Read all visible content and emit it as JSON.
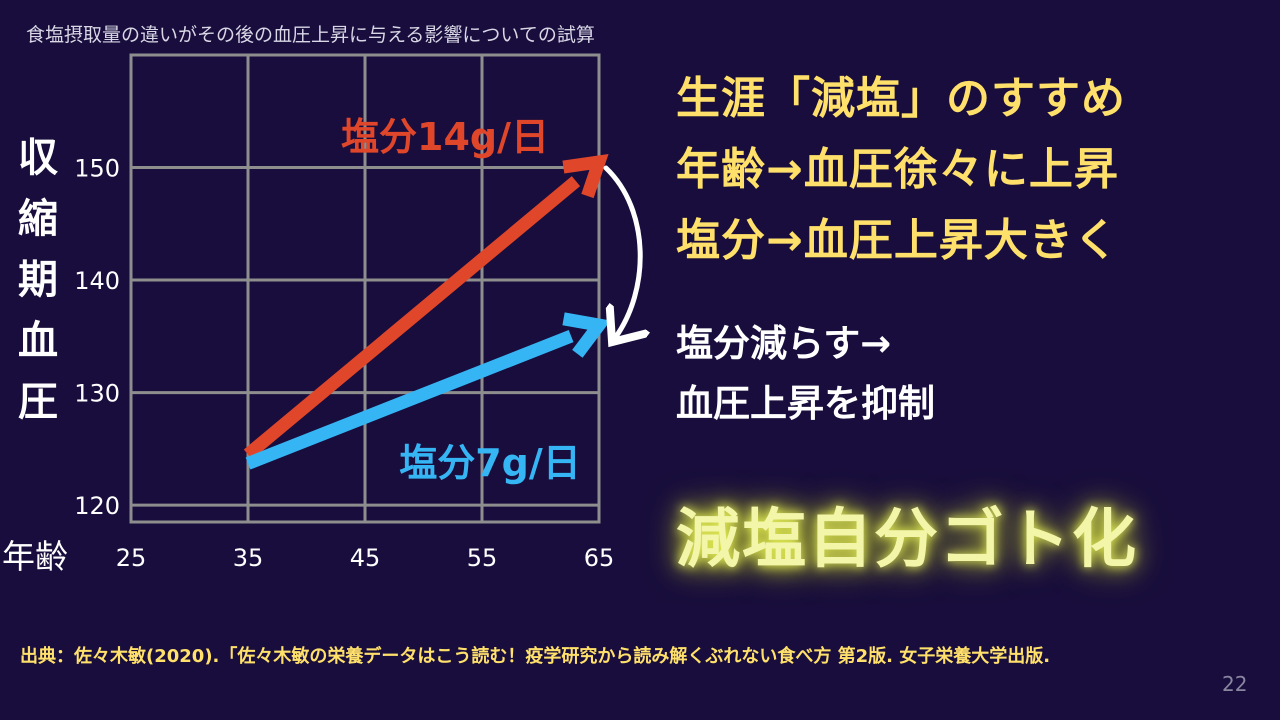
{
  "slide": {
    "heading_lines": [
      "生涯「減塩」のすすめ",
      "年齢→血圧徐々に上昇",
      "塩分→血圧上昇大きく"
    ],
    "note_lines": [
      "塩分減らす→",
      "血圧上昇を抑制"
    ],
    "slogan": "減塩自分ゴト化",
    "source": "出典：佐々木敏(2020).「佐々木敏の栄養データはこう読む！疫学研究から読み解くぶれない食べ方 第2版. 女子栄養大学出版.",
    "page_number": "22",
    "colors": {
      "heading": "#ffe06a",
      "slogan": "#f3f6a8",
      "background": "#180d3c",
      "grid": "#8e8e8e"
    }
  },
  "chart_data": {
    "type": "line",
    "title": "食塩摂取量の違いがその後の血圧上昇に与える影響についての試算",
    "ylabel": "収縮期血圧",
    "xlabel": "年齢",
    "x_ticks": [
      25,
      35,
      45,
      55,
      65
    ],
    "y_ticks": [
      120,
      130,
      140,
      150
    ],
    "xlim": [
      25,
      65
    ],
    "ylim": [
      118.5,
      160
    ],
    "grid": true,
    "series": [
      {
        "name": "塩分14g/日",
        "color": "#e0462a",
        "x": [
          35,
          65
        ],
        "y": [
          124.5,
          150.5
        ]
      },
      {
        "name": "塩分7g/日",
        "color": "#36b5f5",
        "x": [
          35,
          65
        ],
        "y": [
          123.7,
          136
        ]
      }
    ],
    "annotation": "curved white arrow from 14g/day endpoint down to 7g/day endpoint"
  }
}
